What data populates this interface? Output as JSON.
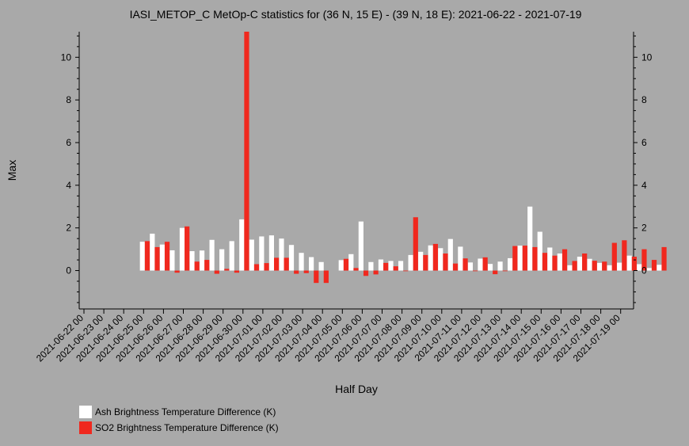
{
  "chart_data": {
    "type": "bar",
    "title": "IASI_METOP_C MetOp-C statistics for (36 N, 15 E) - (39 N, 18 E): 2021-06-22 - 2021-07-19",
    "xlabel": "Half Day",
    "ylabel": "Max",
    "ylim": [
      -1.8,
      11.2
    ],
    "yticks": [
      0,
      2,
      4,
      6,
      8,
      10
    ],
    "xticks": [
      "2021-06-22 00",
      "2021-06-23 00",
      "2021-06-24 00",
      "2021-06-25 00",
      "2021-06-26 00",
      "2021-06-27 00",
      "2021-06-28 00",
      "2021-06-29 00",
      "2021-06-30 00",
      "2021-07-01 00",
      "2021-07-02 00",
      "2021-07-03 00",
      "2021-07-04 00",
      "2021-07-05 00",
      "2021-07-06 00",
      "2021-07-07 00",
      "2021-07-08 00",
      "2021-07-09 00",
      "2021-07-10 00",
      "2021-07-11 00",
      "2021-07-12 00",
      "2021-07-13 00",
      "2021-07-14 00",
      "2021-07-15 00",
      "2021-07-16 00",
      "2021-07-17 00",
      "2021-07-18 00",
      "2021-07-19 00"
    ],
    "legend_position": "bottom-left",
    "series": [
      {
        "name": "Ash Brightness Temperature Difference (K)",
        "color": "#ffffff",
        "values": [
          null,
          null,
          null,
          1.35,
          1.73,
          1.22,
          0.95,
          2.0,
          0.91,
          0.94,
          1.44,
          1.0,
          1.38,
          2.4,
          1.45,
          1.6,
          1.65,
          1.5,
          1.2,
          0.83,
          0.63,
          0.4,
          null,
          0.49,
          0.77,
          2.3,
          0.4,
          0.52,
          0.45,
          0.45,
          0.73,
          0.88,
          1.18,
          1.05,
          1.48,
          1.12,
          0.38,
          0.56,
          0.31,
          0.42,
          0.58,
          1.17,
          3.0,
          1.82,
          1.08,
          0.8,
          0.25,
          0.65,
          0.55,
          0.36,
          0.25,
          0.37,
          0.7,
          0.3,
          0.12,
          0.27
        ]
      },
      {
        "name": "SO2 Brightness Temperature Difference (K)",
        "color": "#f0281e",
        "values": [
          null,
          null,
          null,
          1.38,
          1.1,
          1.35,
          -0.1,
          2.07,
          0.42,
          0.5,
          -0.15,
          0.08,
          -0.1,
          11.2,
          0.3,
          0.35,
          0.6,
          0.6,
          -0.15,
          -0.12,
          -0.58,
          -0.58,
          null,
          0.55,
          0.12,
          -0.25,
          -0.18,
          0.36,
          0.2,
          0.0,
          2.5,
          0.73,
          1.25,
          0.8,
          0.33,
          0.57,
          0.0,
          0.62,
          -0.17,
          0.0,
          1.15,
          1.17,
          1.1,
          0.83,
          0.7,
          1.0,
          0.45,
          0.8,
          0.46,
          0.42,
          1.3,
          1.42,
          0.65,
          1.0,
          0.5,
          1.1
        ]
      }
    ]
  }
}
